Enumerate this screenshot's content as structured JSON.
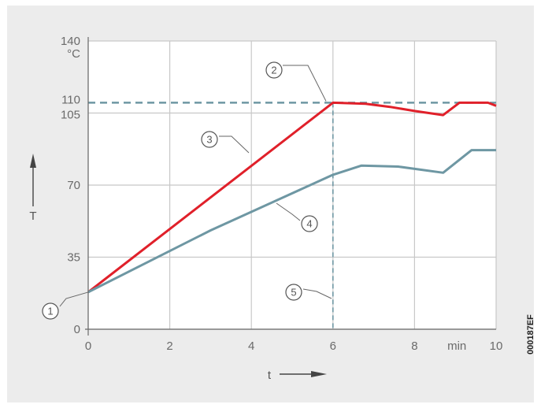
{
  "chart_data": {
    "type": "line",
    "x_axis": {
      "label": "t",
      "min": 0,
      "max": 10,
      "ticks": [
        "0",
        "2",
        "4",
        "6",
        "8",
        "10"
      ],
      "unit": "min"
    },
    "y_axis": {
      "label": "T",
      "min": 0,
      "max": 140,
      "ticks": [
        "0",
        "35",
        "70",
        "105",
        "110",
        "140"
      ],
      "unit": "°C"
    },
    "grid": true,
    "series": [
      {
        "id": "3",
        "color": "#e0202a",
        "points": [
          [
            0,
            18
          ],
          [
            6,
            110
          ],
          [
            6.8,
            109.5
          ],
          [
            7.4,
            108
          ],
          [
            8,
            106
          ],
          [
            8.7,
            104
          ],
          [
            9.1,
            110
          ],
          [
            9.8,
            110
          ],
          [
            10,
            108.5
          ]
        ]
      },
      {
        "id": "4",
        "color": "#6e97a3",
        "points": [
          [
            0,
            18
          ],
          [
            3,
            48
          ],
          [
            6,
            75
          ],
          [
            6.7,
            79.5
          ],
          [
            7.6,
            79
          ],
          [
            8.7,
            76
          ],
          [
            9.4,
            87
          ],
          [
            10,
            87
          ]
        ]
      }
    ],
    "reference_lines": [
      {
        "id": "2",
        "orientation": "horizontal",
        "value": 110,
        "color": "#6e97a3"
      },
      {
        "id": "5",
        "orientation": "vertical",
        "value": 6,
        "color": "#6e97a3"
      }
    ],
    "callouts": [
      {
        "label": "1"
      },
      {
        "label": "2"
      },
      {
        "label": "3"
      },
      {
        "label": "4"
      },
      {
        "label": "5"
      }
    ],
    "side_code": "000187EF"
  }
}
